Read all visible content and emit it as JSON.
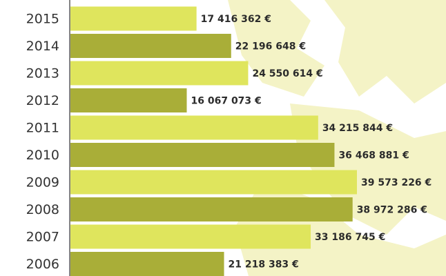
{
  "chart_data": {
    "type": "bar",
    "orientation": "horizontal",
    "categories": [
      "2015",
      "2014",
      "2013",
      "2012",
      "2011",
      "2010",
      "2009",
      "2008",
      "2007",
      "2006"
    ],
    "values": [
      17416362,
      22196648,
      24550614,
      16067073,
      34215844,
      36468881,
      39573226,
      38972286,
      33186745,
      21218383
    ],
    "value_labels": [
      "17 416 362 €",
      "22 196 648 €",
      "24 550 614 €",
      "16 067 073 €",
      "34 215 844 €",
      "36 468 881 €",
      "39 573 226 €",
      "38 972 286 €",
      "33 186 745 €",
      "21 218 383 €"
    ],
    "colors": [
      "#dfe55d",
      "#a9ae38",
      "#dfe55d",
      "#a9ae38",
      "#dfe55d",
      "#a9ae38",
      "#dfe55d",
      "#a9ae38",
      "#dfe55d",
      "#a9ae38"
    ]
  }
}
